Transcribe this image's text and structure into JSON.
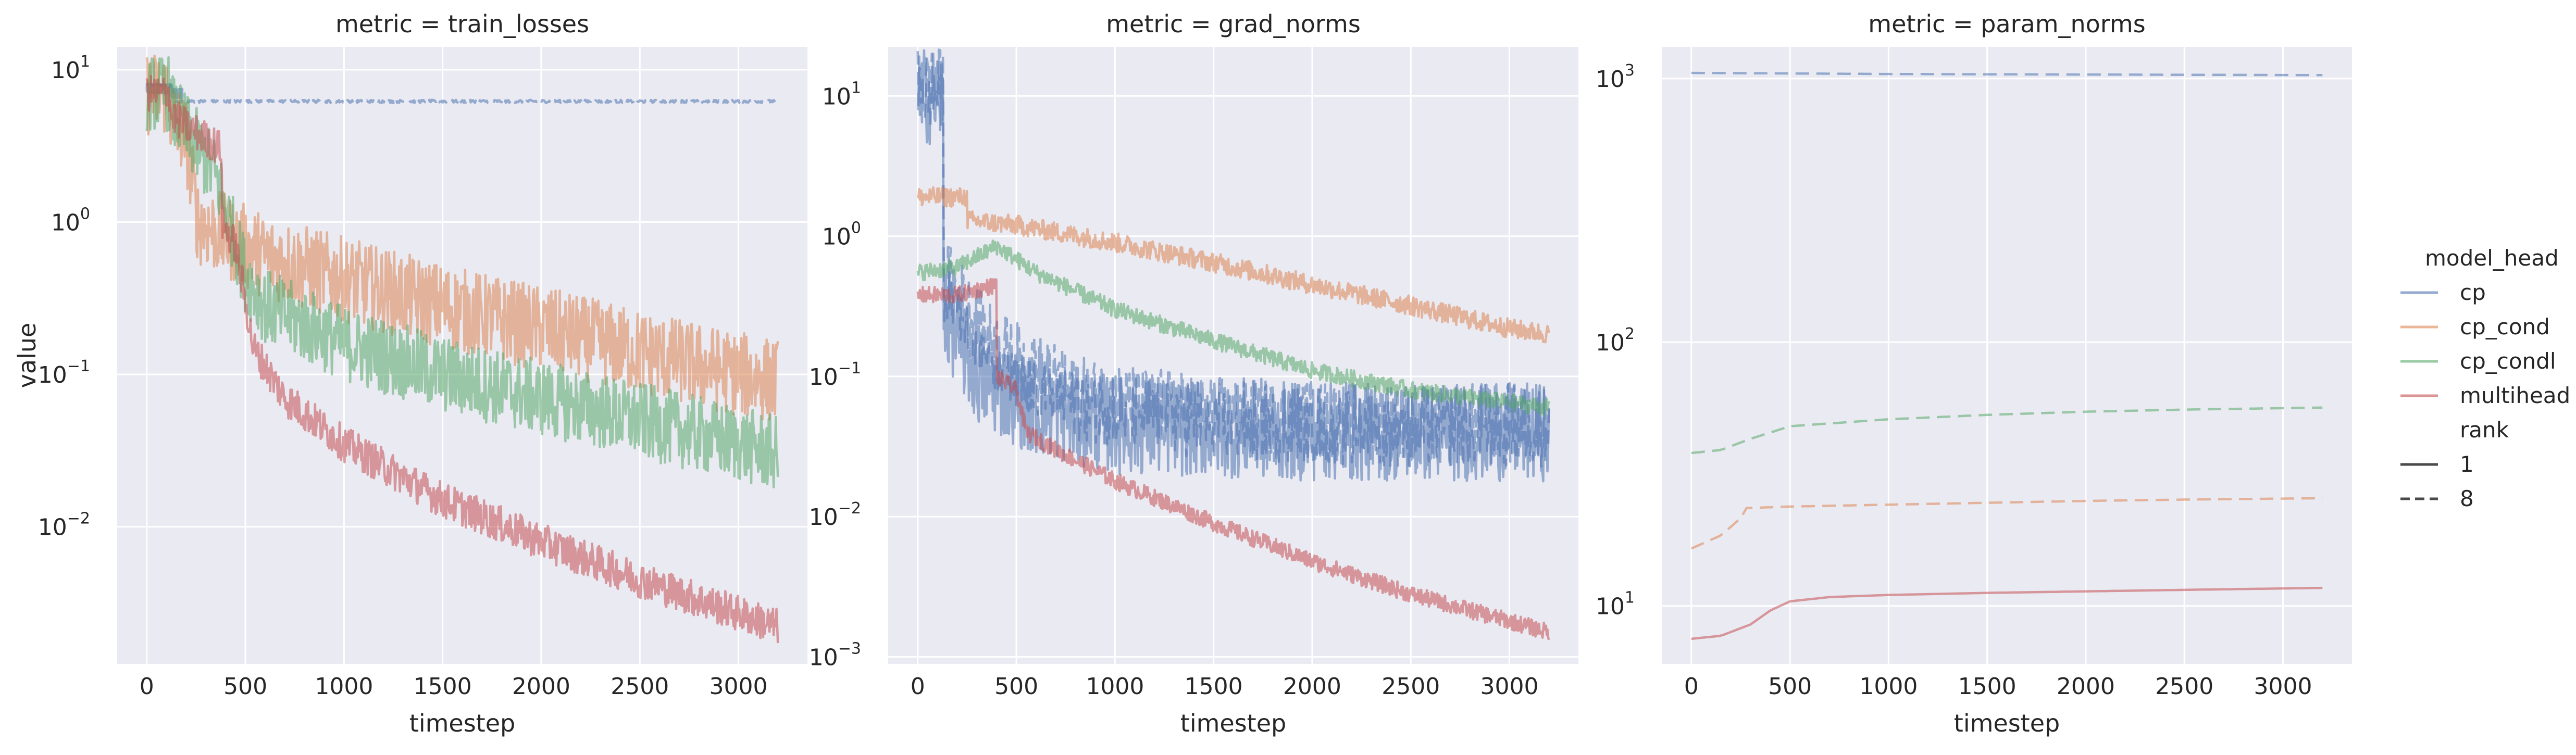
{
  "colors": {
    "cp": "#4c72b0",
    "cp_cond": "#dd8452",
    "cp_condl": "#55a868",
    "multihead": "#c44e52",
    "panel_bg": "#eaeaf2"
  },
  "shared": {
    "xlabel": "timestep",
    "ylabel": "value",
    "x_ticks": [
      0,
      500,
      1000,
      1500,
      2000,
      2500,
      3000
    ],
    "xlim": [
      -150,
      3350
    ]
  },
  "legend": {
    "hue_title": "model_head",
    "hue_entries": [
      "cp",
      "cp_cond",
      "cp_condl",
      "multihead"
    ],
    "style_title": "rank",
    "style_entries": [
      {
        "label": "1",
        "dash": "solid"
      },
      {
        "label": "8",
        "dash": "dashed"
      }
    ],
    "placement": "right"
  },
  "chart_data": [
    {
      "type": "line",
      "title": "metric = train_losses",
      "yscale": "log",
      "ylim_log10": [
        -2.9,
        1.15
      ],
      "y_ticks": [
        {
          "base": "10",
          "exp": "1",
          "value": 10
        },
        {
          "base": "10",
          "exp": "0",
          "value": 1
        },
        {
          "base": "10",
          "exp": "−1",
          "value": 0.1
        },
        {
          "base": "10",
          "exp": "−2",
          "value": 0.01
        }
      ],
      "series": [
        {
          "model_head": "cp",
          "rank": 1,
          "noise": 0.03,
          "points": [
            [
              0,
              7.5
            ],
            [
              120,
              7.5
            ],
            [
              121,
              7.0
            ],
            [
              180,
              7.0
            ]
          ]
        },
        {
          "model_head": "cp",
          "rank": 8,
          "noise": 0.01,
          "points": [
            [
              0,
              8.0
            ],
            [
              130,
              7.8
            ],
            [
              140,
              6.2
            ],
            [
              3200,
              6.2
            ]
          ]
        },
        {
          "model_head": "cp_cond",
          "rank": 1,
          "noise": 0.28,
          "points": [
            [
              0,
              7.0
            ],
            [
              120,
              7.0
            ],
            [
              121,
              5.0
            ],
            [
              200,
              3.5
            ],
            [
              260,
              1.0
            ],
            [
              400,
              0.8
            ],
            [
              600,
              0.6
            ],
            [
              1000,
              0.42
            ],
            [
              1500,
              0.28
            ],
            [
              2000,
              0.2
            ],
            [
              2500,
              0.14
            ],
            [
              3000,
              0.1
            ],
            [
              3200,
              0.09
            ]
          ]
        },
        {
          "model_head": "cp_condl",
          "rank": 1,
          "noise": 0.25,
          "points": [
            [
              0,
              7.0
            ],
            [
              120,
              7.0
            ],
            [
              121,
              5.5
            ],
            [
              230,
              3.5
            ],
            [
              350,
              2.0
            ],
            [
              420,
              1.0
            ],
            [
              500,
              0.45
            ],
            [
              600,
              0.28
            ],
            [
              1000,
              0.16
            ],
            [
              1500,
              0.1
            ],
            [
              2000,
              0.07
            ],
            [
              2500,
              0.05
            ],
            [
              3000,
              0.035
            ],
            [
              3200,
              0.03
            ]
          ]
        },
        {
          "model_head": "multihead",
          "rank": 1,
          "noise": 0.12,
          "points": [
            [
              0,
              7.0
            ],
            [
              120,
              7.0
            ],
            [
              121,
              5.0
            ],
            [
              380,
              3.0
            ],
            [
              381,
              1.0
            ],
            [
              450,
              0.7
            ],
            [
              500,
              0.3
            ],
            [
              540,
              0.15
            ],
            [
              700,
              0.07
            ],
            [
              1000,
              0.035
            ],
            [
              1500,
              0.015
            ],
            [
              2000,
              0.008
            ],
            [
              2500,
              0.0045
            ],
            [
              3000,
              0.0027
            ],
            [
              3200,
              0.0022
            ]
          ]
        }
      ]
    },
    {
      "type": "line",
      "title": "metric = grad_norms",
      "yscale": "log",
      "ylim_log10": [
        -3.05,
        1.35
      ],
      "y_ticks": [
        {
          "base": "10",
          "exp": "1",
          "value": 10
        },
        {
          "base": "10",
          "exp": "0",
          "value": 1
        },
        {
          "base": "10",
          "exp": "−1",
          "value": 0.1
        },
        {
          "base": "10",
          "exp": "−2",
          "value": 0.01
        },
        {
          "base": "10",
          "exp": "−3",
          "value": 0.001
        }
      ],
      "series": [
        {
          "model_head": "cp",
          "rank": 1,
          "noise": 0.35,
          "points": [
            [
              0,
              10.0
            ],
            [
              130,
              10.0
            ],
            [
              131,
              0.3
            ],
            [
              300,
              0.1
            ],
            [
              600,
              0.06
            ],
            [
              1000,
              0.045
            ],
            [
              2000,
              0.04
            ],
            [
              3200,
              0.04
            ]
          ]
        },
        {
          "model_head": "cp",
          "rank": 8,
          "noise": 0.3,
          "points": [
            [
              0,
              11.0
            ],
            [
              130,
              11.0
            ],
            [
              131,
              0.5
            ],
            [
              400,
              0.15
            ],
            [
              800,
              0.07
            ],
            [
              1500,
              0.05
            ],
            [
              2500,
              0.045
            ],
            [
              3200,
              0.045
            ]
          ]
        },
        {
          "model_head": "cp_cond",
          "rank": 1,
          "noise": 0.07,
          "points": [
            [
              0,
              1.9
            ],
            [
              250,
              1.9
            ],
            [
              251,
              1.3
            ],
            [
              500,
              1.2
            ],
            [
              1000,
              0.9
            ],
            [
              1500,
              0.65
            ],
            [
              2000,
              0.45
            ],
            [
              2500,
              0.32
            ],
            [
              3000,
              0.22
            ],
            [
              3200,
              0.2
            ]
          ]
        },
        {
          "model_head": "cp_condl",
          "rank": 1,
          "noise": 0.06,
          "points": [
            [
              0,
              0.55
            ],
            [
              200,
              0.6
            ],
            [
              400,
              0.85
            ],
            [
              600,
              0.55
            ],
            [
              1000,
              0.3
            ],
            [
              1500,
              0.18
            ],
            [
              2000,
              0.11
            ],
            [
              2500,
              0.08
            ],
            [
              3000,
              0.065
            ],
            [
              3200,
              0.06
            ]
          ]
        },
        {
          "model_head": "multihead",
          "rank": 1,
          "noise": 0.06,
          "points": [
            [
              0,
              0.38
            ],
            [
              200,
              0.38
            ],
            [
              400,
              0.45
            ],
            [
              401,
              0.1
            ],
            [
              500,
              0.08
            ],
            [
              550,
              0.04
            ],
            [
              700,
              0.03
            ],
            [
              1000,
              0.018
            ],
            [
              1500,
              0.009
            ],
            [
              2000,
              0.0048
            ],
            [
              2500,
              0.0028
            ],
            [
              3000,
              0.0018
            ],
            [
              3200,
              0.0015
            ]
          ]
        }
      ]
    },
    {
      "type": "line",
      "title": "metric = param_norms",
      "yscale": "log",
      "ylim_log10": [
        0.78,
        3.12
      ],
      "y_ticks": [
        {
          "base": "10",
          "exp": "3",
          "value": 1000
        },
        {
          "base": "10",
          "exp": "2",
          "value": 100
        },
        {
          "base": "10",
          "exp": "1",
          "value": 10
        }
      ],
      "series": [
        {
          "model_head": "cp",
          "rank": 8,
          "noise": 0,
          "points": [
            [
              0,
              1050
            ],
            [
              1000,
              1040
            ],
            [
              2000,
              1035
            ],
            [
              3200,
              1030
            ]
          ]
        },
        {
          "model_head": "cp_condl",
          "rank": 8,
          "noise": 0,
          "points": [
            [
              0,
              38
            ],
            [
              150,
              39
            ],
            [
              300,
              43
            ],
            [
              500,
              48
            ],
            [
              1000,
              51
            ],
            [
              1500,
              53
            ],
            [
              2000,
              54.5
            ],
            [
              2500,
              55.5
            ],
            [
              3200,
              56.5
            ]
          ]
        },
        {
          "model_head": "cp_cond",
          "rank": 8,
          "noise": 0,
          "points": [
            [
              0,
              16.5
            ],
            [
              150,
              18.5
            ],
            [
              250,
              21.5
            ],
            [
              280,
              23.5
            ],
            [
              500,
              23.8
            ],
            [
              1000,
              24.2
            ],
            [
              1500,
              24.6
            ],
            [
              2000,
              25
            ],
            [
              2500,
              25.3
            ],
            [
              3200,
              25.6
            ]
          ]
        },
        {
          "model_head": "multihead",
          "rank": 1,
          "noise": 0,
          "points": [
            [
              0,
              7.5
            ],
            [
              150,
              7.7
            ],
            [
              300,
              8.5
            ],
            [
              400,
              9.6
            ],
            [
              500,
              10.4
            ],
            [
              700,
              10.8
            ],
            [
              1000,
              11.0
            ],
            [
              1500,
              11.2
            ],
            [
              2000,
              11.35
            ],
            [
              2500,
              11.5
            ],
            [
              3200,
              11.7
            ]
          ]
        }
      ]
    }
  ]
}
